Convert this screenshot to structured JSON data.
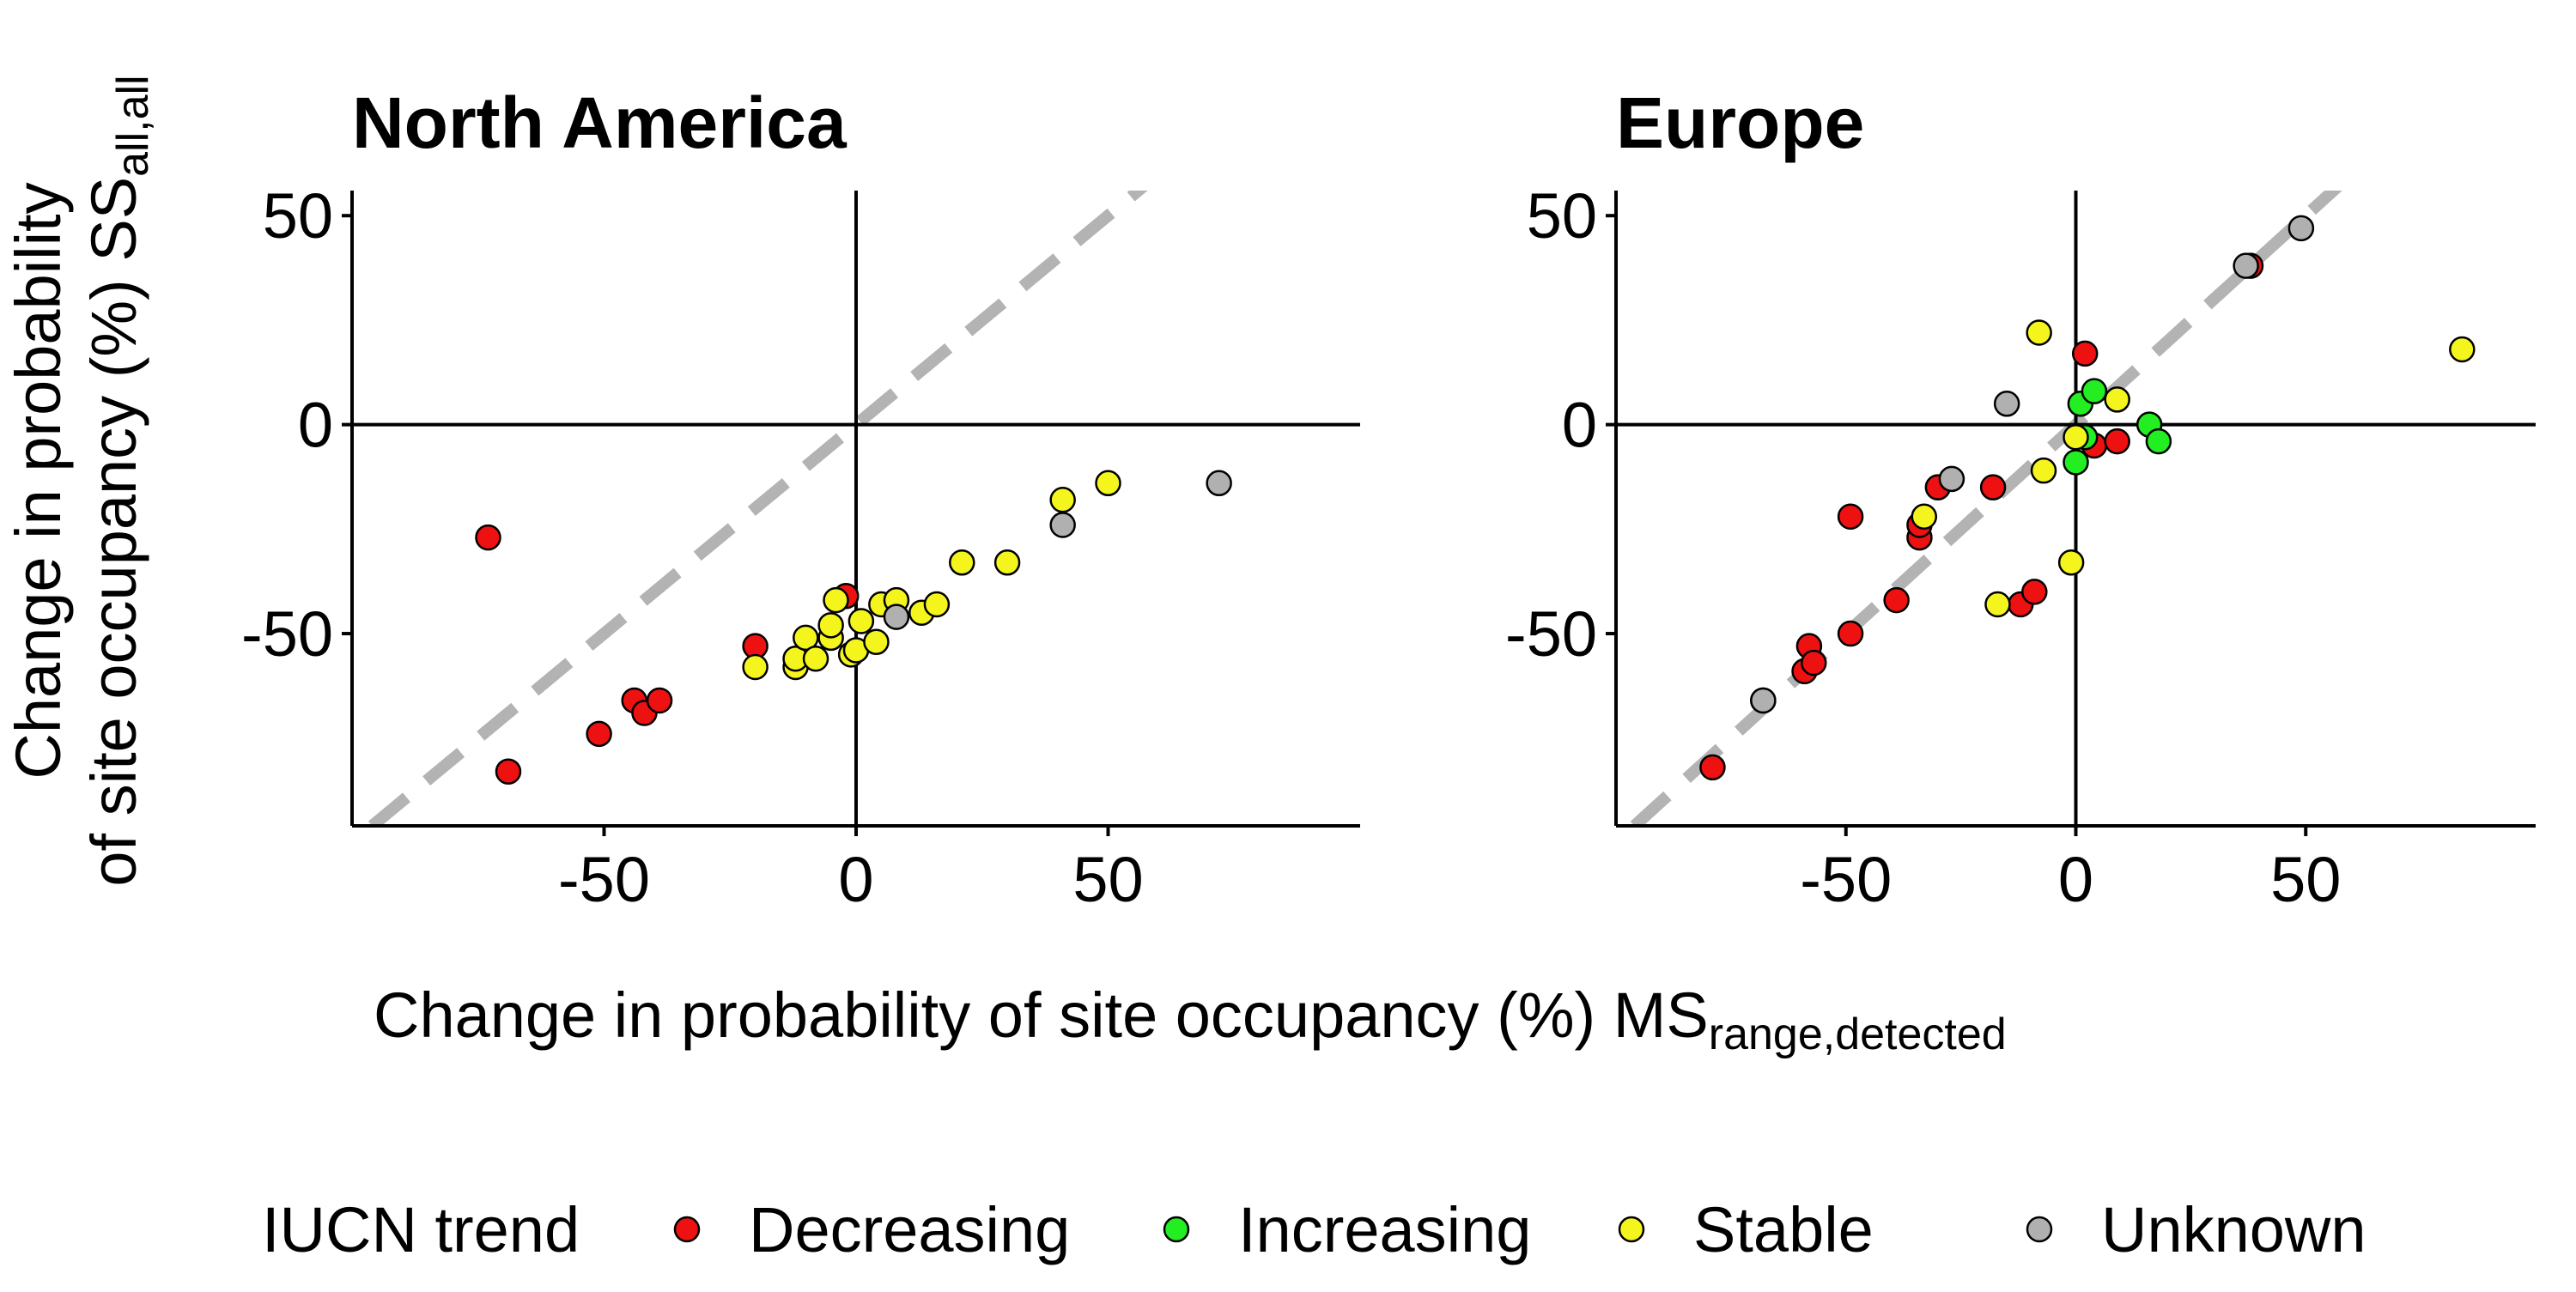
{
  "colors": {
    "Decreasing": "#ee1111",
    "Increasing": "#22ee22",
    "Stable": "#f5f51e",
    "Unknown": "#b0b0b0",
    "identity_line": "#b3b3b3"
  },
  "labels": {
    "y_axis_line1": "Change in probability",
    "y_axis_line2": "of site occupancy (%) SS",
    "y_axis_sub": "all,all",
    "x_axis_main": "Change in probability of site occupancy (%) MS",
    "x_axis_sub": "range,detected"
  },
  "legend": {
    "title": "IUCN trend",
    "position": "bottom",
    "items": [
      "Decreasing",
      "Increasing",
      "Stable",
      "Unknown"
    ]
  },
  "chart_data": [
    {
      "type": "scatter",
      "title": "North America",
      "xlim": [
        -100,
        100
      ],
      "ylim": [
        -96,
        56
      ],
      "xticks": [
        -50,
        0,
        50
      ],
      "yticks": [
        -50,
        0,
        50
      ],
      "reference_lines": [
        "x=0",
        "y=0",
        "y=x (dashed)"
      ],
      "grid": false,
      "series": [
        {
          "name": "Decreasing",
          "points": [
            [
              -73,
              -27
            ],
            [
              -69,
              -83
            ],
            [
              -51,
              -74
            ],
            [
              -44,
              -66
            ],
            [
              -42,
              -69
            ],
            [
              -39,
              -66
            ],
            [
              -20,
              -53
            ],
            [
              -2,
              -41
            ]
          ]
        },
        {
          "name": "Stable",
          "points": [
            [
              -20,
              -58
            ],
            [
              -12,
              -58
            ],
            [
              -12,
              -56
            ],
            [
              -10,
              -51
            ],
            [
              -8,
              -56
            ],
            [
              -5,
              -51
            ],
            [
              -5,
              -48
            ],
            [
              -4,
              -42
            ],
            [
              -1,
              -55
            ],
            [
              0,
              -54
            ],
            [
              1,
              -47
            ],
            [
              4,
              -52
            ],
            [
              5,
              -43
            ],
            [
              8,
              -42
            ],
            [
              13,
              -45
            ],
            [
              16,
              -43
            ],
            [
              21,
              -33
            ],
            [
              30,
              -33
            ],
            [
              41,
              -18
            ],
            [
              50,
              -14
            ]
          ]
        },
        {
          "name": "Unknown",
          "points": [
            [
              8,
              -46
            ],
            [
              41,
              -24
            ],
            [
              72,
              -14
            ]
          ]
        }
      ]
    },
    {
      "type": "scatter",
      "title": "Europe",
      "xlim": [
        -100,
        100
      ],
      "ylim": [
        -96,
        56
      ],
      "xticks": [
        -50,
        0,
        50
      ],
      "yticks": [
        -50,
        0,
        50
      ],
      "reference_lines": [
        "x=0",
        "y=0",
        "y=x (dashed)"
      ],
      "grid": false,
      "series": [
        {
          "name": "Decreasing",
          "points": [
            [
              -79,
              -82
            ],
            [
              -68,
              -66
            ],
            [
              -59,
              -59
            ],
            [
              -58,
              -53
            ],
            [
              -57,
              -57
            ],
            [
              -49,
              -50
            ],
            [
              -49,
              -22
            ],
            [
              -39,
              -42
            ],
            [
              -34,
              -27
            ],
            [
              -34,
              -24
            ],
            [
              -30,
              -15
            ],
            [
              -18,
              -15
            ],
            [
              -12,
              -43
            ],
            [
              -9,
              -40
            ],
            [
              2,
              17
            ],
            [
              4,
              -5
            ],
            [
              9,
              -4
            ],
            [
              38,
              38
            ]
          ]
        },
        {
          "name": "Increasing",
          "points": [
            [
              0,
              -9
            ],
            [
              1,
              5
            ],
            [
              2,
              -3
            ],
            [
              4,
              8
            ],
            [
              16,
              0
            ],
            [
              18,
              -4
            ]
          ]
        },
        {
          "name": "Stable",
          "points": [
            [
              -33,
              -22
            ],
            [
              -17,
              -43
            ],
            [
              -8,
              22
            ],
            [
              -7,
              -11
            ],
            [
              -1,
              -33
            ],
            [
              0,
              -3
            ],
            [
              9,
              6
            ],
            [
              84,
              18
            ]
          ]
        },
        {
          "name": "Unknown",
          "points": [
            [
              -68,
              -66
            ],
            [
              -27,
              -13
            ],
            [
              -15,
              5
            ],
            [
              37,
              38
            ],
            [
              49,
              47
            ]
          ]
        }
      ]
    }
  ]
}
